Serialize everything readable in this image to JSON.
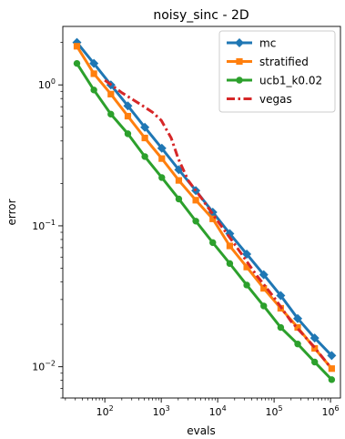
{
  "chart_data": {
    "type": "line",
    "title": "noisy_sinc - 2D",
    "xlabel": "evals",
    "ylabel": "error",
    "xscale": "log",
    "yscale": "log",
    "xlim": [
      18,
      1500000
    ],
    "ylim": [
      0.006,
      2.6
    ],
    "x_ticks": [
      {
        "value": 100,
        "base": "10",
        "exp": "2"
      },
      {
        "value": 1000,
        "base": "10",
        "exp": "3"
      },
      {
        "value": 10000,
        "base": "10",
        "exp": "4"
      },
      {
        "value": 100000,
        "base": "10",
        "exp": "5"
      },
      {
        "value": 1000000,
        "base": "10",
        "exp": "6"
      }
    ],
    "y_ticks": [
      {
        "value": 0.01,
        "base": "10",
        "exp": "−2"
      },
      {
        "value": 0.1,
        "base": "10",
        "exp": "−1"
      },
      {
        "value": 1,
        "base": "10",
        "exp": "0"
      }
    ],
    "grid": false,
    "legend_position": "top-right",
    "series": [
      {
        "name": "mc",
        "color": "#1f77b4",
        "marker": "diamond",
        "dash": "solid",
        "x": [
          32,
          64,
          128,
          256,
          512,
          1024,
          2048,
          4096,
          8192,
          16384,
          32768,
          65536,
          131072,
          262144,
          524288,
          1048576
        ],
        "y": [
          2.0,
          1.42,
          1.0,
          0.71,
          0.5,
          0.355,
          0.25,
          0.178,
          0.125,
          0.088,
          0.063,
          0.045,
          0.032,
          0.022,
          0.016,
          0.012
        ]
      },
      {
        "name": "stratified",
        "color": "#ff7f0e",
        "marker": "square",
        "dash": "solid",
        "x": [
          32,
          64,
          128,
          256,
          512,
          1024,
          2048,
          4096,
          8192,
          16384,
          32768,
          65536,
          131072,
          262144,
          524288,
          1048576
        ],
        "y": [
          1.88,
          1.2,
          0.86,
          0.6,
          0.42,
          0.3,
          0.21,
          0.152,
          0.112,
          0.072,
          0.051,
          0.036,
          0.026,
          0.019,
          0.0135,
          0.0097
        ]
      },
      {
        "name": "ucb1_k0.02",
        "color": "#2ca02c",
        "marker": "circle",
        "dash": "solid",
        "x": [
          32,
          64,
          128,
          256,
          512,
          1024,
          2048,
          4096,
          8192,
          16384,
          32768,
          65536,
          131072,
          262144,
          524288,
          1048576
        ],
        "y": [
          1.42,
          0.92,
          0.62,
          0.45,
          0.31,
          0.22,
          0.155,
          0.108,
          0.076,
          0.054,
          0.038,
          0.027,
          0.019,
          0.0145,
          0.0108,
          0.0081
        ]
      },
      {
        "name": "vegas",
        "color": "#d62728",
        "marker": "none",
        "dash": "dashdot",
        "x": [
          100,
          200,
          400,
          700,
          1000,
          1500,
          2000,
          3000,
          5000,
          10000,
          20000,
          50000,
          100000,
          200000,
          500000,
          1000000
        ],
        "y": [
          1.08,
          0.88,
          0.74,
          0.64,
          0.56,
          0.42,
          0.3,
          0.21,
          0.16,
          0.108,
          0.074,
          0.044,
          0.031,
          0.021,
          0.014,
          0.0099
        ]
      }
    ]
  }
}
